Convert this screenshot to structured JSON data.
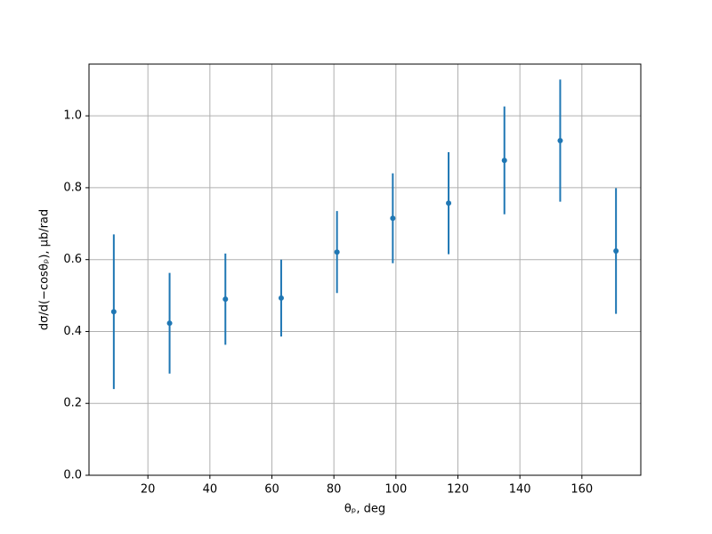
{
  "chart_data": {
    "type": "errorbar",
    "xlabel": "θₚ, deg",
    "ylabel": "dσ/d(−cosθₚ), μb/rad",
    "x": [
      9,
      27,
      45,
      63,
      81,
      99,
      117,
      135,
      153,
      171
    ],
    "series": [
      {
        "color": "#1f77b4",
        "values": [
          0.455,
          0.423,
          0.49,
          0.493,
          0.621,
          0.715,
          0.757,
          0.876,
          0.931,
          0.624
        ],
        "errors": [
          0.215,
          0.14,
          0.127,
          0.107,
          0.114,
          0.125,
          0.142,
          0.15,
          0.17,
          0.175
        ]
      }
    ],
    "xlim": [
      1,
      179
    ],
    "ylim": [
      0,
      1.144
    ],
    "xticks": [
      20,
      40,
      60,
      80,
      100,
      120,
      140,
      160
    ],
    "yticks": [
      {
        "value": 0,
        "label": "0.0"
      },
      {
        "value": 0.2,
        "label": "0.2"
      },
      {
        "value": 0.4,
        "label": "0.4"
      },
      {
        "value": 0.6,
        "label": "0.6"
      },
      {
        "value": 0.8,
        "label": "0.8"
      },
      {
        "value": 1.0,
        "label": "1.0"
      }
    ],
    "grid": true
  }
}
